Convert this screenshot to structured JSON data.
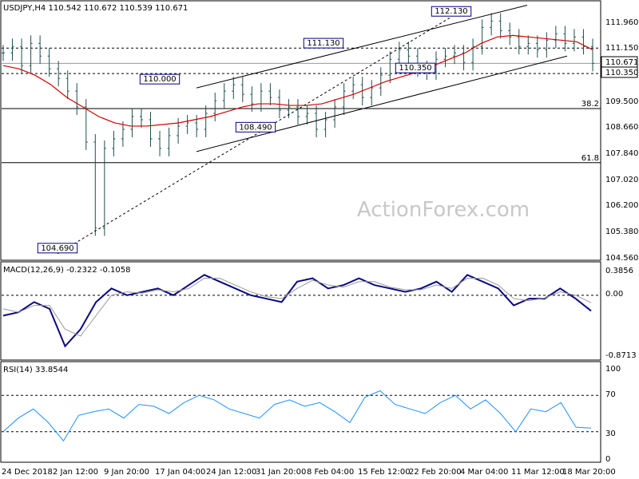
{
  "watermark": "ActionForex.com",
  "chart_data": [
    {
      "type": "candlestick",
      "panel": "price",
      "title": "USDJPY,H4  110.542 110.672 110.539 110.671",
      "ylim": [
        104.4,
        112.5
      ],
      "grid": false,
      "ticks": [
        "111.960",
        "111.150",
        "110.671",
        "110.350",
        "109.500",
        "108.660",
        "107.840",
        "107.020",
        "106.200",
        "105.380",
        "104.560"
      ],
      "price_tag": "110.671",
      "levels": [
        {
          "value": 111.15,
          "label": "111.150",
          "style": "dashed"
        },
        {
          "value": 110.35,
          "label": "110.350",
          "style": "dashed"
        },
        {
          "value": 109.25,
          "label": "38.2",
          "style": "solid"
        },
        {
          "value": 107.55,
          "label": "61.8",
          "style": "solid"
        }
      ],
      "annotations": [
        {
          "text": "112.130",
          "x": "1 Mar",
          "y": 112.13
        },
        {
          "text": "111.130",
          "x": "11 Feb",
          "y": 111.13
        },
        {
          "text": "110.350",
          "x": "26 Feb",
          "y": 110.35
        },
        {
          "text": "110.000",
          "x": "16 Jan",
          "y": 110.0
        },
        {
          "text": "108.490",
          "x": "28 Jan",
          "y": 108.49
        },
        {
          "text": "104.690",
          "x": "3 Jan",
          "y": 104.69
        }
      ],
      "close": [
        111.0,
        111.2,
        110.6,
        111.3,
        110.9,
        110.5,
        110.2,
        109.8,
        109.3,
        108.2,
        105.5,
        108.0,
        108.3,
        108.6,
        109.0,
        108.9,
        108.3,
        108.0,
        108.4,
        108.7,
        108.8,
        108.6,
        109.1,
        109.5,
        109.8,
        110.0,
        109.7,
        109.4,
        109.8,
        109.6,
        109.2,
        109.3,
        109.0,
        109.1,
        108.6,
        108.9,
        109.3,
        109.8,
        110.0,
        109.6,
        109.9,
        110.3,
        110.8,
        111.1,
        110.9,
        110.5,
        110.4,
        110.8,
        110.9,
        111.0,
        110.7,
        111.2,
        111.8,
        112.0,
        111.7,
        111.5,
        111.2,
        111.3,
        111.1,
        111.4,
        111.6,
        111.3,
        111.5,
        111.2,
        110.67
      ],
      "ma": [
        110.6,
        110.5,
        110.3,
        110.0,
        109.6,
        109.3,
        109.0,
        108.8,
        108.7,
        108.7,
        108.75,
        108.8,
        108.9,
        109.0,
        109.15,
        109.3,
        109.4,
        109.4,
        109.35,
        109.35,
        109.4,
        109.55,
        109.7,
        109.9,
        110.1,
        110.25,
        110.4,
        110.6,
        110.8,
        111.0,
        111.3,
        111.5,
        111.55,
        111.5,
        111.45,
        111.4,
        111.35,
        111.1
      ],
      "channel": [
        {
          "from": {
            "x": "15 Jan",
            "y": 109.9
          },
          "to": {
            "x": "13 Mar",
            "y": 112.5
          }
        },
        {
          "from": {
            "x": "15 Jan",
            "y": 107.9
          },
          "to": {
            "x": "15 Mar",
            "y": 110.9
          }
        },
        {
          "from": {
            "x": "3 Jan",
            "y": 104.69
          },
          "to": {
            "x": "1 Mar",
            "y": 112.13
          },
          "style": "dotted"
        }
      ]
    },
    {
      "type": "line",
      "panel": "macd",
      "title": "MACD(12,26,9) -0.2322 -0.1058",
      "ylim": [
        -0.87,
        0.39
      ],
      "ticks": [
        "0.3856",
        "0.00",
        "-0.8713"
      ],
      "series": [
        {
          "name": "MACD",
          "values": [
            -0.3,
            -0.25,
            -0.1,
            -0.2,
            -0.75,
            -0.5,
            -0.1,
            0.1,
            0.0,
            0.05,
            0.1,
            0.0,
            0.15,
            0.3,
            0.2,
            0.1,
            0.0,
            -0.05,
            -0.1,
            0.2,
            0.25,
            0.1,
            0.15,
            0.25,
            0.15,
            0.1,
            0.05,
            0.1,
            0.2,
            0.05,
            0.3,
            0.2,
            0.1,
            -0.15,
            -0.05,
            -0.05,
            0.1,
            -0.05,
            -0.23
          ]
        },
        {
          "name": "Signal",
          "values": [
            -0.2,
            -0.25,
            -0.15,
            -0.15,
            -0.5,
            -0.6,
            -0.3,
            0.0,
            0.05,
            0.03,
            0.08,
            0.05,
            0.1,
            0.25,
            0.25,
            0.15,
            0.05,
            -0.02,
            -0.05,
            0.1,
            0.22,
            0.15,
            0.12,
            0.2,
            0.2,
            0.12,
            0.08,
            0.08,
            0.15,
            0.1,
            0.25,
            0.25,
            0.15,
            -0.05,
            -0.08,
            -0.04,
            0.05,
            0.0,
            -0.11
          ]
        }
      ]
    },
    {
      "type": "line",
      "panel": "rsi",
      "title": "RSI(14) 33.8544",
      "ylim": [
        0,
        100
      ],
      "ticks": [
        "100",
        "70",
        "30",
        "0"
      ],
      "levels": [
        70,
        30
      ],
      "series": [
        {
          "name": "RSI",
          "values": [
            30,
            45,
            55,
            40,
            20,
            48,
            52,
            55,
            45,
            60,
            58,
            50,
            62,
            70,
            65,
            55,
            50,
            45,
            60,
            65,
            58,
            62,
            52,
            40,
            68,
            75,
            60,
            55,
            50,
            62,
            70,
            55,
            65,
            50,
            30,
            55,
            52,
            62,
            35,
            34
          ]
        }
      ]
    }
  ],
  "x_axis": [
    "24 Dec 2018",
    "2 Jan 12:00",
    "9 Jan 20:00",
    "17 Jan 04:00",
    "24 Jan 12:00",
    "31 Jan 20:00",
    "8 Feb 04:00",
    "15 Feb 12:00",
    "22 Feb 20:00",
    "4 Mar 04:00",
    "11 Mar 12:00",
    "18 Mar 20:00"
  ]
}
